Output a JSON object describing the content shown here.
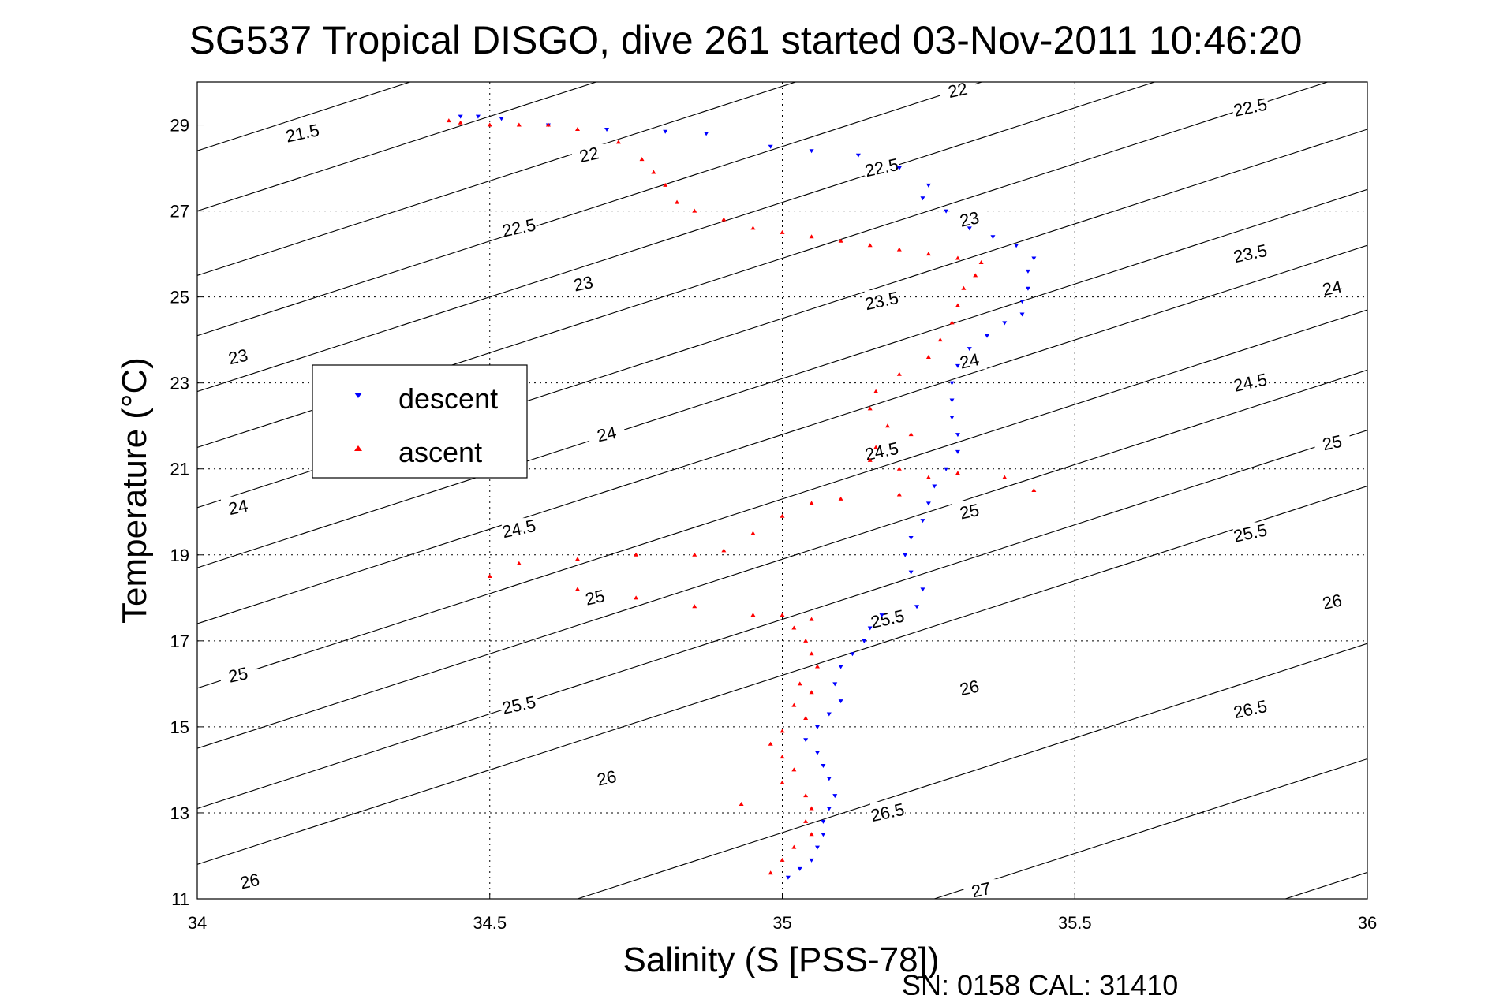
{
  "chart_data": {
    "type": "scatter",
    "title": "SG537 Tropical DISGO, dive 261 started 03-Nov-2011 10:46:20",
    "xlabel": "Salinity (S [PSS-78])",
    "ylabel": "Temperature (°C)",
    "footer": "SN: 0158  CAL: 31410",
    "xlim": [
      34,
      36
    ],
    "ylim": [
      11,
      30
    ],
    "xticks": [
      34,
      34.5,
      35,
      35.5,
      36
    ],
    "xtick_labels": [
      "34",
      "34.5",
      "35",
      "35.5",
      "36"
    ],
    "yticks": [
      11,
      13,
      15,
      17,
      19,
      21,
      23,
      25,
      27,
      29
    ],
    "ytick_labels": [
      "11",
      "13",
      "15",
      "17",
      "19",
      "21",
      "23",
      "25",
      "27",
      "29"
    ],
    "grid": true,
    "legend_position": "left",
    "isopycnal_labels": [
      {
        "text": "21.5",
        "x": 34.18,
        "y": 28.8
      },
      {
        "text": "22",
        "x": 34.67,
        "y": 28.3
      },
      {
        "text": "22",
        "x": 35.3,
        "y": 29.8
      },
      {
        "text": "22.5",
        "x": 34.55,
        "y": 26.6
      },
      {
        "text": "22.5",
        "x": 35.17,
        "y": 28.0
      },
      {
        "text": "22.5",
        "x": 35.8,
        "y": 29.4
      },
      {
        "text": "23",
        "x": 34.07,
        "y": 23.6
      },
      {
        "text": "23",
        "x": 34.66,
        "y": 25.3
      },
      {
        "text": "23",
        "x": 35.32,
        "y": 26.8
      },
      {
        "text": "23.5",
        "x": 35.17,
        "y": 24.9
      },
      {
        "text": "23.5",
        "x": 35.8,
        "y": 26.0
      },
      {
        "text": "24",
        "x": 34.07,
        "y": 20.1
      },
      {
        "text": "24",
        "x": 34.7,
        "y": 21.8
      },
      {
        "text": "24",
        "x": 35.32,
        "y": 23.5
      },
      {
        "text": "24",
        "x": 35.94,
        "y": 25.2
      },
      {
        "text": "24.5",
        "x": 34.55,
        "y": 19.6
      },
      {
        "text": "24.5",
        "x": 35.17,
        "y": 21.4
      },
      {
        "text": "24.5",
        "x": 35.8,
        "y": 23.0
      },
      {
        "text": "25",
        "x": 34.07,
        "y": 16.2
      },
      {
        "text": "25",
        "x": 34.68,
        "y": 18.0
      },
      {
        "text": "25",
        "x": 35.32,
        "y": 20.0
      },
      {
        "text": "25",
        "x": 35.94,
        "y": 21.6
      },
      {
        "text": "25.5",
        "x": 34.55,
        "y": 15.5
      },
      {
        "text": "25.5",
        "x": 35.18,
        "y": 17.5
      },
      {
        "text": "25.5",
        "x": 35.8,
        "y": 19.5
      },
      {
        "text": "26",
        "x": 34.09,
        "y": 11.4
      },
      {
        "text": "26",
        "x": 34.7,
        "y": 13.8
      },
      {
        "text": "26",
        "x": 35.32,
        "y": 15.9
      },
      {
        "text": "26",
        "x": 35.94,
        "y": 17.9
      },
      {
        "text": "26.5",
        "x": 35.18,
        "y": 13.0
      },
      {
        "text": "26.5",
        "x": 35.8,
        "y": 15.4
      },
      {
        "text": "27",
        "x": 35.34,
        "y": 11.2
      }
    ],
    "series": [
      {
        "name": "descent",
        "color": "#0000ff",
        "marker": "triangle-down",
        "points": [
          [
            34.45,
            29.2
          ],
          [
            34.48,
            29.2
          ],
          [
            34.52,
            29.15
          ],
          [
            34.6,
            29.0
          ],
          [
            34.7,
            28.9
          ],
          [
            34.8,
            28.85
          ],
          [
            34.87,
            28.8
          ],
          [
            34.98,
            28.5
          ],
          [
            35.05,
            28.4
          ],
          [
            35.13,
            28.3
          ],
          [
            35.2,
            28.0
          ],
          [
            35.25,
            27.6
          ],
          [
            35.24,
            27.3
          ],
          [
            35.28,
            27.0
          ],
          [
            35.32,
            26.6
          ],
          [
            35.36,
            26.4
          ],
          [
            35.4,
            26.2
          ],
          [
            35.43,
            25.9
          ],
          [
            35.42,
            25.6
          ],
          [
            35.42,
            25.2
          ],
          [
            35.41,
            24.9
          ],
          [
            35.41,
            24.6
          ],
          [
            35.38,
            24.4
          ],
          [
            35.35,
            24.1
          ],
          [
            35.32,
            23.8
          ],
          [
            35.3,
            23.4
          ],
          [
            35.29,
            23.0
          ],
          [
            35.29,
            22.6
          ],
          [
            35.29,
            22.2
          ],
          [
            35.3,
            21.8
          ],
          [
            35.3,
            21.4
          ],
          [
            35.28,
            21.0
          ],
          [
            35.26,
            20.6
          ],
          [
            35.25,
            20.2
          ],
          [
            35.24,
            19.8
          ],
          [
            35.22,
            19.4
          ],
          [
            35.21,
            19.0
          ],
          [
            35.22,
            18.6
          ],
          [
            35.24,
            18.2
          ],
          [
            35.23,
            17.8
          ],
          [
            35.17,
            17.6
          ],
          [
            35.15,
            17.3
          ],
          [
            35.14,
            17.0
          ],
          [
            35.12,
            16.7
          ],
          [
            35.1,
            16.4
          ],
          [
            35.09,
            16.0
          ],
          [
            35.1,
            15.6
          ],
          [
            35.08,
            15.3
          ],
          [
            35.06,
            15.0
          ],
          [
            35.04,
            14.7
          ],
          [
            35.06,
            14.4
          ],
          [
            35.07,
            14.1
          ],
          [
            35.08,
            13.8
          ],
          [
            35.09,
            13.4
          ],
          [
            35.08,
            13.1
          ],
          [
            35.07,
            12.8
          ],
          [
            35.07,
            12.5
          ],
          [
            35.06,
            12.2
          ],
          [
            35.05,
            11.9
          ],
          [
            35.03,
            11.7
          ],
          [
            35.01,
            11.5
          ]
        ]
      },
      {
        "name": "ascent",
        "color": "#ff0000",
        "marker": "triangle-up",
        "points": [
          [
            34.43,
            29.1
          ],
          [
            34.45,
            29.05
          ],
          [
            34.5,
            29.0
          ],
          [
            34.55,
            29.0
          ],
          [
            34.6,
            29.0
          ],
          [
            34.65,
            28.9
          ],
          [
            34.72,
            28.6
          ],
          [
            34.76,
            28.2
          ],
          [
            34.78,
            27.9
          ],
          [
            34.8,
            27.6
          ],
          [
            34.82,
            27.2
          ],
          [
            34.85,
            27.0
          ],
          [
            34.9,
            26.8
          ],
          [
            34.95,
            26.6
          ],
          [
            35.0,
            26.5
          ],
          [
            35.05,
            26.4
          ],
          [
            35.1,
            26.3
          ],
          [
            35.15,
            26.2
          ],
          [
            35.2,
            26.1
          ],
          [
            35.25,
            26.0
          ],
          [
            35.3,
            25.9
          ],
          [
            35.34,
            25.8
          ],
          [
            35.33,
            25.5
          ],
          [
            35.31,
            25.2
          ],
          [
            35.3,
            24.8
          ],
          [
            35.29,
            24.4
          ],
          [
            35.27,
            24.0
          ],
          [
            35.25,
            23.6
          ],
          [
            35.2,
            23.2
          ],
          [
            35.16,
            22.8
          ],
          [
            35.15,
            22.4
          ],
          [
            35.18,
            22.0
          ],
          [
            35.22,
            21.8
          ],
          [
            35.16,
            21.5
          ],
          [
            35.15,
            21.2
          ],
          [
            35.2,
            21.0
          ],
          [
            35.25,
            20.8
          ],
          [
            35.3,
            20.9
          ],
          [
            35.38,
            20.8
          ],
          [
            35.43,
            20.5
          ],
          [
            35.2,
            20.4
          ],
          [
            35.1,
            20.3
          ],
          [
            35.05,
            20.2
          ],
          [
            35.0,
            19.9
          ],
          [
            34.95,
            19.5
          ],
          [
            34.9,
            19.1
          ],
          [
            34.85,
            19.0
          ],
          [
            34.75,
            19.0
          ],
          [
            34.65,
            18.9
          ],
          [
            34.55,
            18.8
          ],
          [
            34.5,
            18.5
          ],
          [
            34.65,
            18.2
          ],
          [
            34.75,
            18.0
          ],
          [
            34.85,
            17.8
          ],
          [
            34.95,
            17.6
          ],
          [
            35.0,
            17.6
          ],
          [
            35.05,
            17.5
          ],
          [
            35.02,
            17.3
          ],
          [
            35.04,
            17.0
          ],
          [
            35.05,
            16.7
          ],
          [
            35.06,
            16.4
          ],
          [
            35.03,
            16.0
          ],
          [
            35.05,
            15.8
          ],
          [
            35.02,
            15.5
          ],
          [
            35.04,
            15.2
          ],
          [
            35.0,
            14.9
          ],
          [
            34.98,
            14.6
          ],
          [
            35.0,
            14.3
          ],
          [
            35.02,
            14.0
          ],
          [
            35.0,
            13.7
          ],
          [
            35.04,
            13.4
          ],
          [
            35.05,
            13.1
          ],
          [
            35.04,
            12.8
          ],
          [
            35.05,
            12.5
          ],
          [
            35.02,
            12.2
          ],
          [
            35.0,
            11.9
          ],
          [
            34.98,
            11.6
          ],
          [
            34.93,
            13.2
          ]
        ]
      }
    ]
  }
}
